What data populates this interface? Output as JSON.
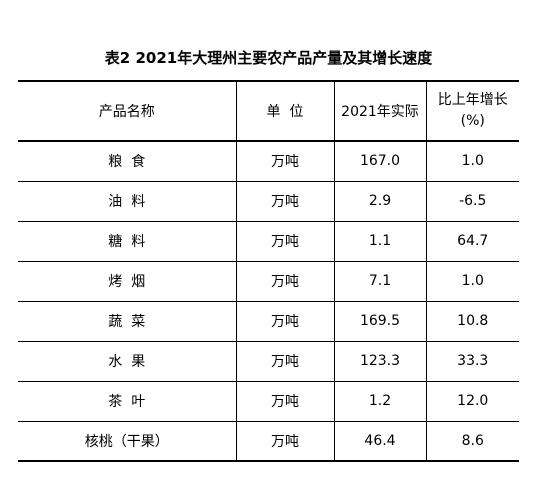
{
  "title": "表2  2021年大理州主要农产品产量及其增长速度",
  "table": {
    "headers": {
      "name": "产品名称",
      "unit": "单  位",
      "actual": "2021年实际",
      "growth_line1": "比上年增长",
      "growth_line2": "(%)"
    },
    "rows": [
      {
        "name": "粮  食",
        "unit": "万吨",
        "actual": "167.0",
        "growth": "1.0"
      },
      {
        "name": "油  料",
        "unit": "万吨",
        "actual": "2.9",
        "growth": "-6.5"
      },
      {
        "name": "糖  料",
        "unit": "万吨",
        "actual": "1.1",
        "growth": "64.7"
      },
      {
        "name": "烤  烟",
        "unit": "万吨",
        "actual": "7.1",
        "growth": "1.0"
      },
      {
        "name": "蔬  菜",
        "unit": "万吨",
        "actual": "169.5",
        "growth": "10.8"
      },
      {
        "name": "水  果",
        "unit": "万吨",
        "actual": "123.3",
        "growth": "33.3"
      },
      {
        "name": "茶  叶",
        "unit": "万吨",
        "actual": "1.2",
        "growth": "12.0"
      },
      {
        "name": "核桃（干果）",
        "unit": "万吨",
        "actual": "46.4",
        "growth": "8.6"
      }
    ]
  }
}
